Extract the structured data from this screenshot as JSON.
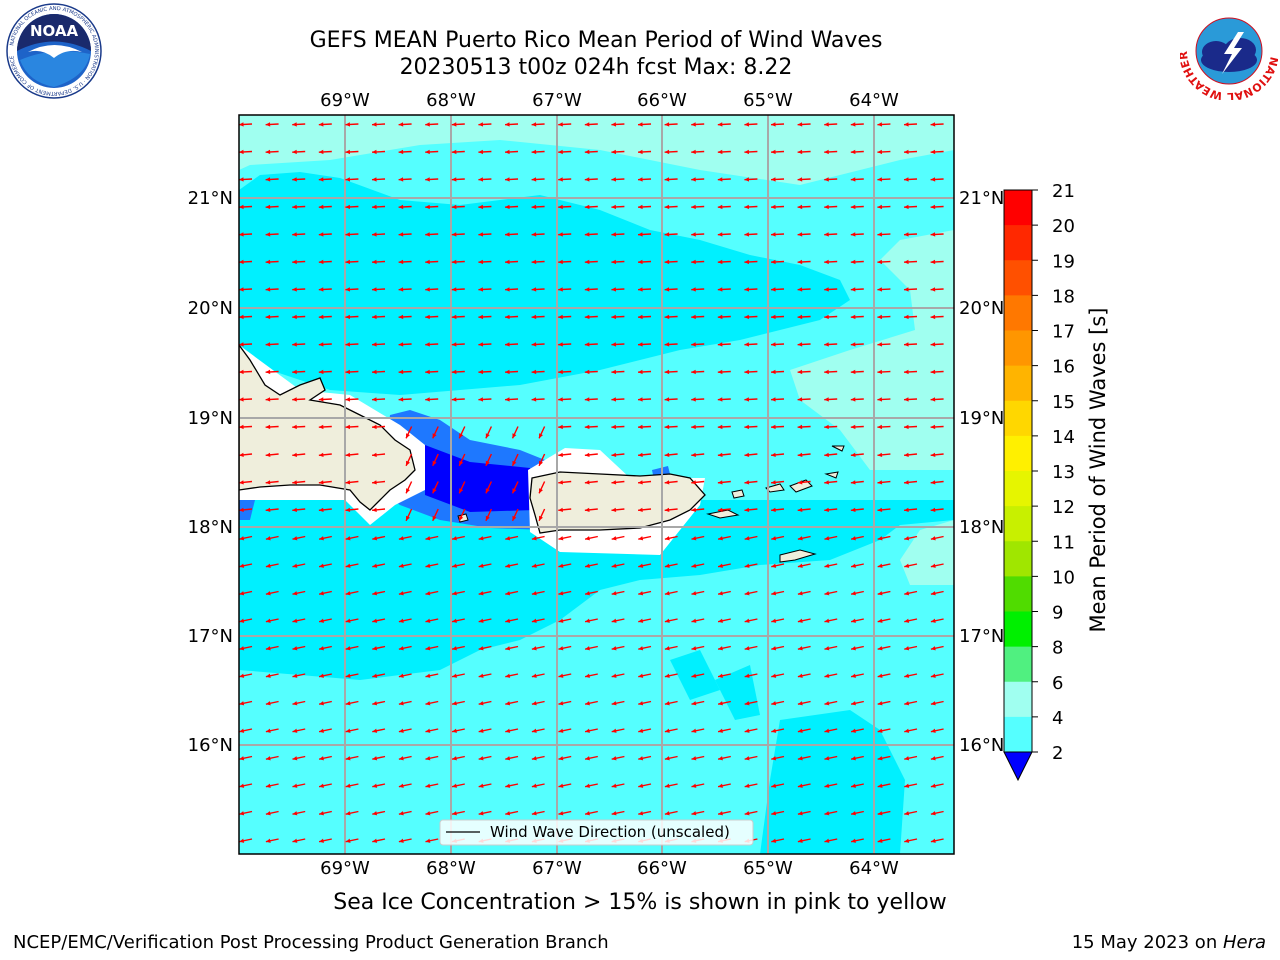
{
  "header": {
    "title_line1": "GEFS MEAN Puerto Rico Mean Period of Wind Waves",
    "title_line2": "20230513 t00z 024h fcst   Max: 8.22"
  },
  "logos": {
    "noaa": {
      "text": "NOAA",
      "ring_text": "NATIONAL OCEANIC AND ATMOSPHERIC ADMINISTRATION · U.S. DEPARTMENT OF COMMERCE"
    },
    "nws": {
      "ring_text": "NATIONAL WEATHER SERVICE"
    }
  },
  "map": {
    "lon_labels": [
      "69°W",
      "68°W",
      "67°W",
      "66°W",
      "65°W",
      "64°W"
    ],
    "lat_labels": [
      "21°N",
      "20°N",
      "19°N",
      "18°N",
      "17°N",
      "16°N"
    ],
    "legend_label": "Wind Wave Direction (unscaled)",
    "colors": {
      "land": "#efeedc",
      "wave_2_4": "#0000ff",
      "wave_4_6": "#1e78ff",
      "wave_6_8": "#00f0ff",
      "wave_8_9": "#55ffff",
      "arrow": "#ff0000"
    }
  },
  "colorbar": {
    "label": "Mean Period of Wind Waves [s]",
    "ticks": [
      "21",
      "20",
      "19",
      "18",
      "17",
      "16",
      "15",
      "14",
      "13",
      "12",
      "11",
      "10",
      "9",
      "8",
      "6",
      "4",
      "2"
    ],
    "colors": [
      "#ff0000",
      "#ff2800",
      "#ff5000",
      "#ff7800",
      "#ff9600",
      "#ffb400",
      "#ffd700",
      "#fff000",
      "#e6f500",
      "#c8f000",
      "#a0e600",
      "#50dc00",
      "#00f000",
      "#50f080",
      "#a0fff0",
      "#55ffff",
      "#00f0ff",
      "#1e78ff",
      "#0000ff"
    ]
  },
  "footer": {
    "sea_ice_note": "Sea Ice Concentration > 15% is shown in pink to yellow",
    "left": "NCEP/EMC/Verification Post Processing Product Generation Branch",
    "right_prefix": "15 May 2023 on ",
    "right_host": "Hera"
  }
}
